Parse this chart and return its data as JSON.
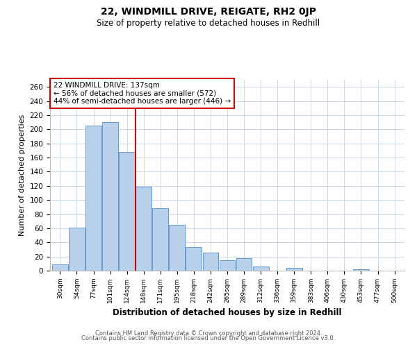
{
  "title": "22, WINDMILL DRIVE, REIGATE, RH2 0JP",
  "subtitle": "Size of property relative to detached houses in Redhill",
  "xlabel": "Distribution of detached houses by size in Redhill",
  "ylabel": "Number of detached properties",
  "bar_labels": [
    "30sqm",
    "54sqm",
    "77sqm",
    "101sqm",
    "124sqm",
    "148sqm",
    "171sqm",
    "195sqm",
    "218sqm",
    "242sqm",
    "265sqm",
    "289sqm",
    "312sqm",
    "336sqm",
    "359sqm",
    "383sqm",
    "406sqm",
    "430sqm",
    "453sqm",
    "477sqm",
    "500sqm"
  ],
  "bar_values": [
    9,
    61,
    205,
    210,
    168,
    119,
    88,
    65,
    33,
    26,
    15,
    18,
    6,
    0,
    4,
    0,
    0,
    0,
    2,
    0,
    0
  ],
  "bar_color": "#b8d0ea",
  "bar_edge_color": "#6699cc",
  "vline_x": 4.5,
  "vline_color": "#cc0000",
  "annotation_title": "22 WINDMILL DRIVE: 137sqm",
  "annotation_line1": "← 56% of detached houses are smaller (572)",
  "annotation_line2": "44% of semi-detached houses are larger (446) →",
  "annotation_box_color": "#ffffff",
  "annotation_box_edge": "#cc0000",
  "ylim": [
    0,
    270
  ],
  "yticks": [
    0,
    20,
    40,
    60,
    80,
    100,
    120,
    140,
    160,
    180,
    200,
    220,
    240,
    260
  ],
  "footer1": "Contains HM Land Registry data © Crown copyright and database right 2024.",
  "footer2": "Contains public sector information licensed under the Open Government Licence v3.0.",
  "bg_color": "#ffffff",
  "grid_color": "#c8d8e8"
}
